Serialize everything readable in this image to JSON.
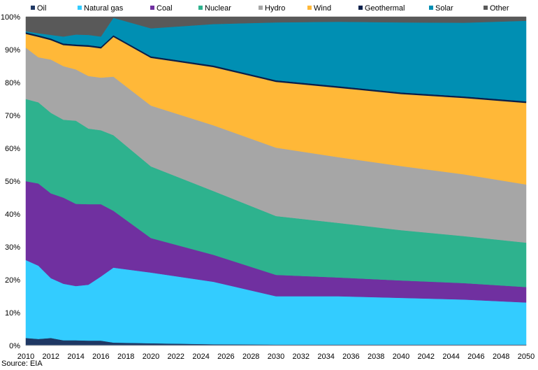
{
  "chart_data": {
    "type": "area",
    "stacked": true,
    "percent": true,
    "title": "",
    "xlabel": "",
    "ylabel": "",
    "ylim": [
      0,
      100
    ],
    "yticks": [
      "0%",
      "10%",
      "20%",
      "30%",
      "40%",
      "50%",
      "60%",
      "70%",
      "80%",
      "90%",
      "100%"
    ],
    "xticks": [
      "2010",
      "2012",
      "2014",
      "2016",
      "2018",
      "2020",
      "2022",
      "2024",
      "2026",
      "2028",
      "2030",
      "2032",
      "2034",
      "2036",
      "2038",
      "2040",
      "2042",
      "2044",
      "2046",
      "2048",
      "2050"
    ],
    "x": [
      2010,
      2011,
      2012,
      2013,
      2014,
      2015,
      2016,
      2017,
      2020,
      2025,
      2030,
      2035,
      2040,
      2045,
      2050
    ],
    "legend_position": "top",
    "series": [
      {
        "name": "Oil",
        "color": "#1f3864",
        "values": [
          2.3,
          2.0,
          2.3,
          1.6,
          1.6,
          1.5,
          1.5,
          0.9,
          0.7,
          0.4,
          0.3,
          0.3,
          0.3,
          0.3,
          0.3
        ]
      },
      {
        "name": "Natural gas",
        "color": "#33ccff",
        "values": [
          23.7,
          22.3,
          18.2,
          17.2,
          16.5,
          17.0,
          19.5,
          22.8,
          21.5,
          19.0,
          14.7,
          14.7,
          14.2,
          13.7,
          12.8
        ]
      },
      {
        "name": "Coal",
        "color": "#7030a0",
        "values": [
          24.0,
          25.0,
          25.8,
          26.2,
          25.0,
          24.5,
          22.0,
          17.3,
          10.5,
          8.2,
          6.5,
          5.7,
          5.3,
          5.0,
          4.7
        ]
      },
      {
        "name": "Nuclear",
        "color": "#2eb28e",
        "values": [
          25.0,
          24.7,
          24.5,
          23.7,
          25.3,
          23.0,
          22.5,
          23.0,
          21.8,
          19.4,
          17.9,
          16.6,
          15.3,
          14.3,
          13.5
        ]
      },
      {
        "name": "Hydro",
        "color": "#a6a6a6",
        "values": [
          15.6,
          13.7,
          16.2,
          16.3,
          15.6,
          16.0,
          16.0,
          17.8,
          18.5,
          20.0,
          20.8,
          20.0,
          19.5,
          18.8,
          17.7
        ]
      },
      {
        "name": "Wind",
        "color": "#ffb838",
        "values": [
          4.3,
          6.3,
          6.0,
          6.5,
          7.2,
          9.0,
          9.0,
          12.2,
          14.6,
          17.8,
          20.1,
          21.2,
          22.0,
          23.3,
          24.9
        ]
      },
      {
        "name": "Geothermal",
        "color": "#0a1f4a",
        "values": [
          0.4,
          0.4,
          0.4,
          0.4,
          0.4,
          0.4,
          0.4,
          0.4,
          0.4,
          0.4,
          0.4,
          0.4,
          0.4,
          0.4,
          0.4
        ]
      },
      {
        "name": "Solar",
        "color": "#008fb3",
        "values": [
          0.3,
          0.6,
          1.1,
          2.1,
          3.0,
          3.1,
          3.1,
          5.3,
          8.5,
          12.6,
          17.6,
          19.6,
          21.3,
          22.4,
          24.5
        ]
      },
      {
        "name": "Other",
        "color": "#595959",
        "values": [
          4.4,
          5.0,
          5.5,
          6.0,
          5.4,
          5.5,
          6.0,
          0.3,
          3.5,
          2.2,
          1.7,
          1.5,
          1.7,
          1.8,
          1.2
        ]
      }
    ]
  },
  "source": "Source: EIA"
}
